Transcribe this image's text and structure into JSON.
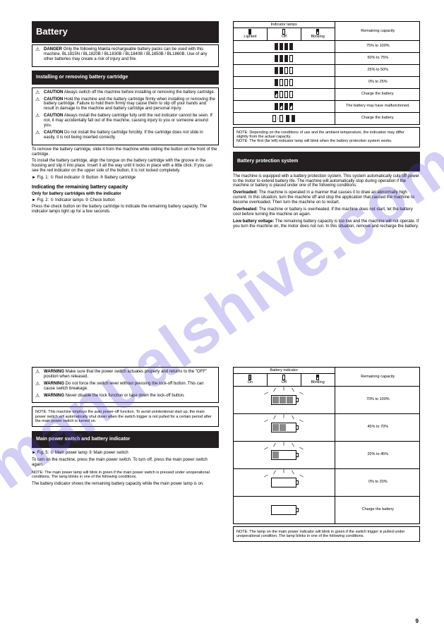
{
  "watermark": "manualshive.com",
  "page_num": "9",
  "left": {
    "hdr1": "Battery",
    "danger": {
      "title": "DANGER",
      "body": "Only the following Makita rechargeable battery packs can be used with this machine. BL1815N / BL1820B / BL1830B / BL1840B / BL1850B / BL1860B. Use of any other batteries may create a risk of injury and fire."
    },
    "hdr2": "Installing or removing battery cartridge",
    "caution": {
      "title": "CAUTION",
      "c1": "Always switch off the machine before installing or removing the battery cartridge.",
      "c2": "Hold the machine and the battery cartridge firmly when installing or removing the battery cartridge. Failure to hold them firmly may cause them to slip off your hands and result in damage to the machine and battery cartridge and personal injury.",
      "c3": "Always install the battery cartridge fully until the red indicator cannot be seen. If not, it may accidentally fall out of the machine, causing injury to you or someone around you.",
      "c4": "Do not install the battery cartridge forcibly. If the cartridge does not slide in easily, it is not being inserted correctly."
    },
    "para1": "To remove the battery cartridge, slide it from the machine while sliding the button on the front of the cartridge.",
    "para2": "To install the battery cartridge, align the tongue on the battery cartridge with the groove in the housing and slip it into place. Insert it all the way until it locks in place with a little click. If you can see the red indicator on the upper side of the button, it is not locked completely.",
    "fig1": "► Fig. 1: ① Red indicator ② Button ③ Battery cartridge",
    "hdr3": "Indicating the remaining battery capacity",
    "only": "Only for battery cartridges with the indicator",
    "fig2": "► Fig. 2: ① Indicator lamps ② Check button",
    "para3": "Press the check button on the battery cartridge to indicate the remaining battery capacity. The indicator lamps light up for a few seconds."
  },
  "table1": {
    "hcol": "Indicator lamps",
    "hstat": "Remaining capacity",
    "legend": {
      "lit": "Lighted",
      "off": "Off",
      "blink": "Blinking"
    },
    "rows": [
      {
        "p": "FFFF",
        "s": "75% to 100%"
      },
      {
        "p": "FFFE",
        "s": "50% to 75%"
      },
      {
        "p": "FFEE",
        "s": "25% to 50%"
      },
      {
        "p": "FEEE",
        "s": "0% to 25%"
      },
      {
        "p": "BEEE",
        "s": "Charge the battery."
      },
      {
        "p": "FBFB",
        "s": "The battery may have malfunctioned."
      },
      {
        "p": "ALT",
        "s": "Charge the battery."
      }
    ],
    "note": "NOTE: Depending on the conditions of use and the ambient temperature, the indication may differ slightly from the actual capacity.\nNOTE: The first (far left) indicator lamp will blink when the battery protection system works."
  },
  "hdr4": "Battery protection system",
  "prot": "The machine is equipped with a battery protection system. This system automatically cuts off power to the motor to extend battery life. The machine will automatically stop during operation if the machine or battery is placed under one of the following conditions:",
  "over": {
    "t": "Overloaded:",
    "b": "The machine is operated in a manner that causes it to draw an abnormally high current. In this situation, turn the machine off and stop the application that caused the machine to become overloaded. Then turn the machine on to restart."
  },
  "hot": {
    "t": "Overheated:",
    "b": "The machine or battery is overheated. If the machine does not start, let the battery cool before turning the machine on again."
  },
  "low": {
    "t": "Low battery voltage:",
    "b": "The remaining battery capacity is too low and the machine will not operate. If you turn the machine on, the motor does not run. In this situation, remove and recharge the battery."
  },
  "right": {
    "warn": {
      "title": "WARNING",
      "w1": "Make sure that the power switch actuates properly and returns to the \"OFF\" position when released.",
      "w2": "Do not force the switch lever without pressing the lock-off button. This can cause switch breakage.",
      "w3": "Never disable the lock function or tape down the lock-off button."
    },
    "note": "NOTE: This machine employs the auto power-off function. To avoid unintentional start up, the main power switch will automatically shut down when the switch trigger is not pulled for a certain period after the main power switch is turned on.",
    "hdr5": "Main power switch and battery indicator",
    "fig3": "► Fig. 5: ① Main power lamp ② Main power switch",
    "p1": "To turn on the machine, press the main power switch. To turn off, press the main power switch again.",
    "note2": "NOTE: The main power lamp will blink in green if the main power switch is pressed under unoperational conditions. The lamp blinks in one of the following conditions.",
    "p2": "The battery indicator shows the remaining battery capacity while the main power lamp is on."
  },
  "table2": {
    "hcol": "Battery indicator",
    "hstat": "Remaining capacity",
    "legend": {
      "on": "On",
      "off": "Off",
      "blink": "Blinking"
    },
    "rows": [
      {
        "cells": 3,
        "fill": 3,
        "rays": true,
        "s": "70% to 100%"
      },
      {
        "cells": 3,
        "fill": 2,
        "rays": true,
        "s": "45% to 70%"
      },
      {
        "cells": 3,
        "fill": 1,
        "rays": true,
        "s": "20% to 45%"
      },
      {
        "cells": 3,
        "fill": 0,
        "rays": true,
        "s": "0% to 20%"
      },
      {
        "cells": 3,
        "fill": 0,
        "rays": false,
        "s": "Charge the battery"
      }
    ],
    "note": "NOTE: The lamp on the main power indicator will blink in green if the switch trigger is pulled under unoperational condition. The lamp blinks in one of the following conditions."
  }
}
